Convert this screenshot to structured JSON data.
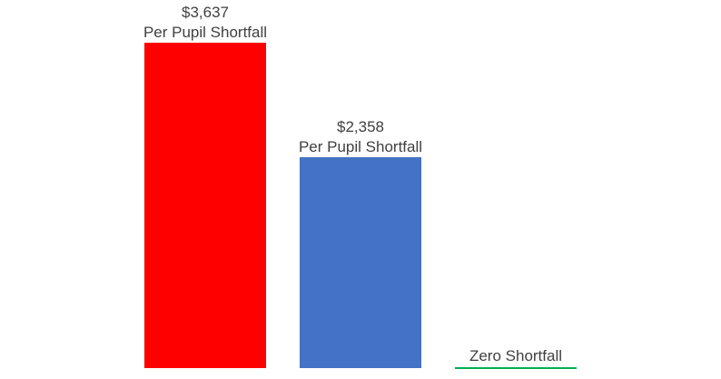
{
  "chart_data": {
    "type": "bar",
    "categories": [
      "",
      "",
      ""
    ],
    "values": [
      3637,
      2358,
      0
    ],
    "colors": [
      "#ff0000",
      "#4472c4",
      "#00b050"
    ],
    "value_labels": [
      "$3,637",
      "$2,358",
      ""
    ],
    "sub_labels": [
      "Per Pupil Shortfall",
      "Per Pupil Shortfall",
      "Zero Shortfall"
    ],
    "ylim": [
      0,
      3637
    ],
    "grid": false,
    "legend": "none"
  }
}
